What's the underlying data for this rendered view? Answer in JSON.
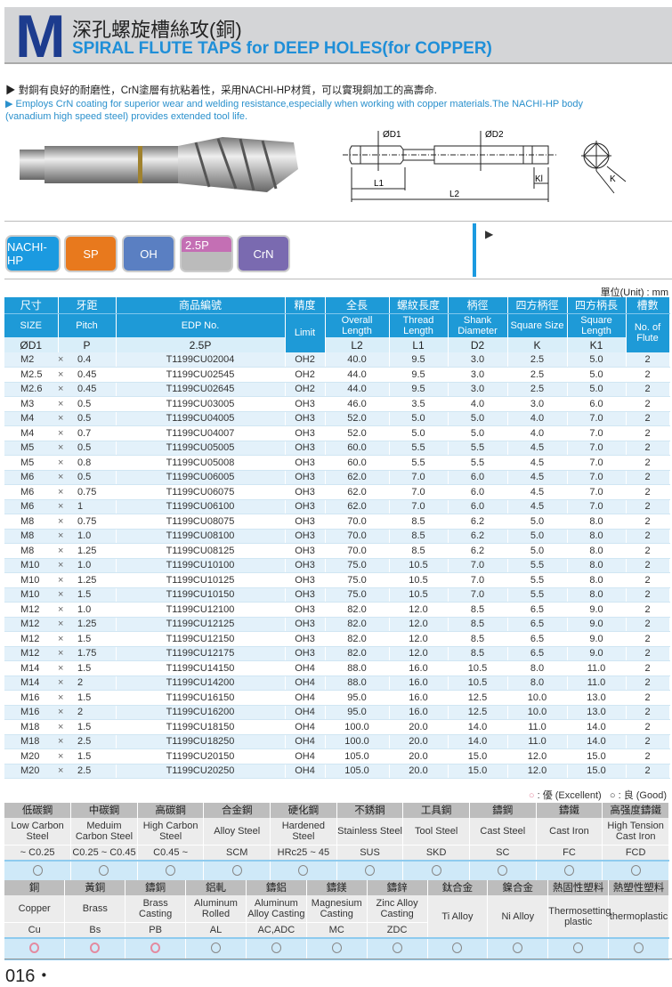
{
  "header": {
    "letter": "M",
    "title_zh": "深孔螺旋槽絲攻(銅)",
    "title_en": "SPIRAL FLUTE TAPS for DEEP HOLES(for COPPER)"
  },
  "description": {
    "zh": "▶ 對銅有良好的耐磨性，CrN塗層有抗粘着性，采用NACHI-HP材質，可以實現銅加工的高壽命.",
    "en": "▶ Employs CrN coating for superior wear and welding resistance,especially when working with copper materials.The NACHI-HP body (vanadium high speed steel) provides extended tool life."
  },
  "drawing": {
    "d1": "ØD1",
    "d2": "ØD2",
    "l1": "L1",
    "l2": "L2",
    "kl": "Kl",
    "k": "K"
  },
  "badges": [
    {
      "label": "NACHI-HP",
      "color": "#1b9ae0"
    },
    {
      "label": "SP",
      "color": "#e8791d"
    },
    {
      "label": "OH",
      "color": "#5a7fc2"
    },
    {
      "label": "2.5P",
      "color": "#c46fb4"
    },
    {
      "label": "CrN",
      "color": "#7a6ab0"
    }
  ],
  "unit": "單位(Unit) : mm",
  "spec_table": {
    "headers_zh": [
      "尺寸",
      "牙距",
      "商品編號",
      "精度",
      "全長",
      "螺紋長度",
      "柄徑",
      "四方柄徑",
      "四方柄長",
      "槽數"
    ],
    "headers_en": [
      "SIZE",
      "Pitch",
      "EDP No.",
      "Limit",
      "Overall Length",
      "Thread Length",
      "Shank Diameter",
      "Square Size",
      "Square Length",
      "No. of Flute"
    ],
    "headers_sym": [
      "ØD1",
      "P",
      "2.5P",
      "L2",
      "L1",
      "D2",
      "K",
      "K1"
    ],
    "rows": [
      [
        "M2",
        "0.4",
        "T1199CU02004",
        "OH2",
        "40.0",
        "9.5",
        "3.0",
        "2.5",
        "5.0",
        "2"
      ],
      [
        "M2.5",
        "0.45",
        "T1199CU02545",
        "OH2",
        "44.0",
        "9.5",
        "3.0",
        "2.5",
        "5.0",
        "2"
      ],
      [
        "M2.6",
        "0.45",
        "T1199CU02645",
        "OH2",
        "44.0",
        "9.5",
        "3.0",
        "2.5",
        "5.0",
        "2"
      ],
      [
        "M3",
        "0.5",
        "T1199CU03005",
        "OH3",
        "46.0",
        "3.5",
        "4.0",
        "3.0",
        "6.0",
        "2"
      ],
      [
        "M4",
        "0.5",
        "T1199CU04005",
        "OH3",
        "52.0",
        "5.0",
        "5.0",
        "4.0",
        "7.0",
        "2"
      ],
      [
        "M4",
        "0.7",
        "T1199CU04007",
        "OH3",
        "52.0",
        "5.0",
        "5.0",
        "4.0",
        "7.0",
        "2"
      ],
      [
        "M5",
        "0.5",
        "T1199CU05005",
        "OH3",
        "60.0",
        "5.5",
        "5.5",
        "4.5",
        "7.0",
        "2"
      ],
      [
        "M5",
        "0.8",
        "T1199CU05008",
        "OH3",
        "60.0",
        "5.5",
        "5.5",
        "4.5",
        "7.0",
        "2"
      ],
      [
        "M6",
        "0.5",
        "T1199CU06005",
        "OH3",
        "62.0",
        "7.0",
        "6.0",
        "4.5",
        "7.0",
        "2"
      ],
      [
        "M6",
        "0.75",
        "T1199CU06075",
        "OH3",
        "62.0",
        "7.0",
        "6.0",
        "4.5",
        "7.0",
        "2"
      ],
      [
        "M6",
        "1",
        "T1199CU06100",
        "OH3",
        "62.0",
        "7.0",
        "6.0",
        "4.5",
        "7.0",
        "2"
      ],
      [
        "M8",
        "0.75",
        "T1199CU08075",
        "OH3",
        "70.0",
        "8.5",
        "6.2",
        "5.0",
        "8.0",
        "2"
      ],
      [
        "M8",
        "1.0",
        "T1199CU08100",
        "OH3",
        "70.0",
        "8.5",
        "6.2",
        "5.0",
        "8.0",
        "2"
      ],
      [
        "M8",
        "1.25",
        "T1199CU08125",
        "OH3",
        "70.0",
        "8.5",
        "6.2",
        "5.0",
        "8.0",
        "2"
      ],
      [
        "M10",
        "1.0",
        "T1199CU10100",
        "OH3",
        "75.0",
        "10.5",
        "7.0",
        "5.5",
        "8.0",
        "2"
      ],
      [
        "M10",
        "1.25",
        "T1199CU10125",
        "OH3",
        "75.0",
        "10.5",
        "7.0",
        "5.5",
        "8.0",
        "2"
      ],
      [
        "M10",
        "1.5",
        "T1199CU10150",
        "OH3",
        "75.0",
        "10.5",
        "7.0",
        "5.5",
        "8.0",
        "2"
      ],
      [
        "M12",
        "1.0",
        "T1199CU12100",
        "OH3",
        "82.0",
        "12.0",
        "8.5",
        "6.5",
        "9.0",
        "2"
      ],
      [
        "M12",
        "1.25",
        "T1199CU12125",
        "OH3",
        "82.0",
        "12.0",
        "8.5",
        "6.5",
        "9.0",
        "2"
      ],
      [
        "M12",
        "1.5",
        "T1199CU12150",
        "OH3",
        "82.0",
        "12.0",
        "8.5",
        "6.5",
        "9.0",
        "2"
      ],
      [
        "M12",
        "1.75",
        "T1199CU12175",
        "OH3",
        "82.0",
        "12.0",
        "8.5",
        "6.5",
        "9.0",
        "2"
      ],
      [
        "M14",
        "1.5",
        "T1199CU14150",
        "OH4",
        "88.0",
        "16.0",
        "10.5",
        "8.0",
        "11.0",
        "2"
      ],
      [
        "M14",
        "2",
        "T1199CU14200",
        "OH4",
        "88.0",
        "16.0",
        "10.5",
        "8.0",
        "11.0",
        "2"
      ],
      [
        "M16",
        "1.5",
        "T1199CU16150",
        "OH4",
        "95.0",
        "16.0",
        "12.5",
        "10.0",
        "13.0",
        "2"
      ],
      [
        "M16",
        "2",
        "T1199CU16200",
        "OH4",
        "95.0",
        "16.0",
        "12.5",
        "10.0",
        "13.0",
        "2"
      ],
      [
        "M18",
        "1.5",
        "T1199CU18150",
        "OH4",
        "100.0",
        "20.0",
        "14.0",
        "11.0",
        "14.0",
        "2"
      ],
      [
        "M18",
        "2.5",
        "T1199CU18250",
        "OH4",
        "100.0",
        "20.0",
        "14.0",
        "11.0",
        "14.0",
        "2"
      ],
      [
        "M20",
        "1.5",
        "T1199CU20150",
        "OH4",
        "105.0",
        "20.0",
        "15.0",
        "12.0",
        "15.0",
        "2"
      ],
      [
        "M20",
        "2.5",
        "T1199CU20250",
        "OH4",
        "105.0",
        "20.0",
        "15.0",
        "12.0",
        "15.0",
        "2"
      ]
    ]
  },
  "legend": {
    "excellent": "○ : 優 (Excellent)",
    "good": "○ : 良 (Good)",
    "excellent_color": "#e48aa0"
  },
  "materials1": [
    {
      "zh": "低碳鋼",
      "en": "Low Carbon Steel",
      "code": "~ C0.25",
      "rating": "good"
    },
    {
      "zh": "中碳鋼",
      "en": "Meduim Carbon Steel",
      "code": "C0.25 ~ C0.45",
      "rating": "good"
    },
    {
      "zh": "高碳鋼",
      "en": "High Carbon Steel",
      "code": "C0.45 ~",
      "rating": "good"
    },
    {
      "zh": "合金鋼",
      "en": "Alloy Steel",
      "code": "SCM",
      "rating": "good"
    },
    {
      "zh": "硬化鋼",
      "en": "Hardened Steel",
      "code": "HRc25 ~ 45",
      "rating": "good"
    },
    {
      "zh": "不銹鋼",
      "en": "Stainless Steel",
      "code": "SUS",
      "rating": "good"
    },
    {
      "zh": "工具鋼",
      "en": "Tool Steel",
      "code": "SKD",
      "rating": "good"
    },
    {
      "zh": "鑄鋼",
      "en": "Cast Steel",
      "code": "SC",
      "rating": "good"
    },
    {
      "zh": "鑄鐵",
      "en": "Cast Iron",
      "code": "FC",
      "rating": "good"
    },
    {
      "zh": "高强度鑄鐵",
      "en": "High Tension Cast Iron",
      "code": "FCD",
      "rating": "good"
    }
  ],
  "materials2": [
    {
      "zh": "銅",
      "en": "Copper",
      "code": "Cu",
      "rating": "excellent"
    },
    {
      "zh": "黃銅",
      "en": "Brass",
      "code": "Bs",
      "rating": "excellent"
    },
    {
      "zh": "鑄銅",
      "en": "Brass Casting",
      "code": "PB",
      "rating": "excellent"
    },
    {
      "zh": "鋁軋",
      "en": "Aluminum Rolled",
      "code": "AL",
      "rating": "good"
    },
    {
      "zh": "鑄鋁",
      "en": "Aluminum Alloy Casting",
      "code": "AC,ADC",
      "rating": "good"
    },
    {
      "zh": "鑄鎂",
      "en": "Magnesium Casting",
      "code": "MC",
      "rating": "good"
    },
    {
      "zh": "鑄鋅",
      "en": "Zinc Alloy Casting",
      "code": "ZDC",
      "rating": "good"
    },
    {
      "zh": "鈦合金",
      "en": "Ti Alloy",
      "code": "",
      "rating": "good"
    },
    {
      "zh": "鎳合金",
      "en": "Ni Alloy",
      "code": "",
      "rating": "good"
    },
    {
      "zh": "熱固性塑料",
      "en": "Thermosetting plastic",
      "code": "",
      "rating": "good"
    },
    {
      "zh": "熱塑性塑料",
      "en": "thermoplastic",
      "code": "",
      "rating": "good"
    }
  ],
  "page_number": "016・"
}
